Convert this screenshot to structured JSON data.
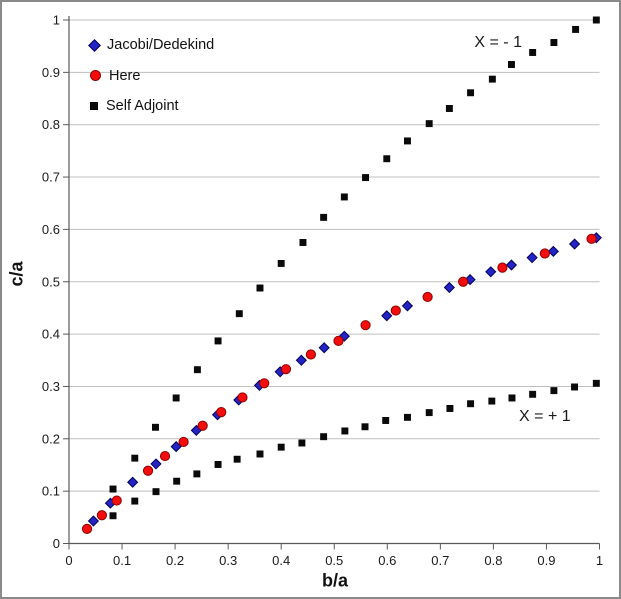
{
  "chart_data": {
    "type": "scatter",
    "title": "",
    "xlabel": "b/a",
    "ylabel": "c/a",
    "xlim": [
      0,
      1
    ],
    "ylim": [
      0,
      1
    ],
    "x_ticks": [
      "0",
      "0.1",
      "0.2",
      "0.3",
      "0.4",
      "0.5",
      "0.6",
      "0.7",
      "0.8",
      "0.9",
      "1"
    ],
    "y_ticks": [
      "0",
      "0.1",
      "0.2",
      "0.3",
      "0.4",
      "0.5",
      "0.6",
      "0.7",
      "0.8",
      "0.9",
      "1"
    ],
    "grid": "horizontal-only",
    "legend_position": "top-left-inside",
    "colors": {
      "grid": "#bfbfbf",
      "axis": "#595959",
      "tick_text": "#1a1a1a"
    },
    "series": [
      {
        "name": "Jacobi/Dedekind",
        "marker": "diamond",
        "color": "#2424c4",
        "edge": "#00005a",
        "points": [
          [
            0.046,
            0.043
          ],
          [
            0.078,
            0.077
          ],
          [
            0.12,
            0.117
          ],
          [
            0.164,
            0.152
          ],
          [
            0.202,
            0.185
          ],
          [
            0.24,
            0.216
          ],
          [
            0.28,
            0.246
          ],
          [
            0.32,
            0.274
          ],
          [
            0.359,
            0.302
          ],
          [
            0.398,
            0.328
          ],
          [
            0.438,
            0.35
          ],
          [
            0.481,
            0.374
          ],
          [
            0.519,
            0.396
          ],
          [
            0.599,
            0.435
          ],
          [
            0.638,
            0.454
          ],
          [
            0.717,
            0.489
          ],
          [
            0.756,
            0.504
          ],
          [
            0.795,
            0.519
          ],
          [
            0.834,
            0.532
          ],
          [
            0.873,
            0.546
          ],
          [
            0.913,
            0.558
          ],
          [
            0.953,
            0.572
          ],
          [
            0.994,
            0.584
          ]
        ]
      },
      {
        "name": "Here",
        "marker": "circle",
        "color": "#f40d0d",
        "edge": "#8e0000",
        "points": [
          [
            0.034,
            0.028
          ],
          [
            0.062,
            0.054
          ],
          [
            0.09,
            0.082
          ],
          [
            0.149,
            0.139
          ],
          [
            0.181,
            0.167
          ],
          [
            0.216,
            0.194
          ],
          [
            0.252,
            0.225
          ],
          [
            0.287,
            0.251
          ],
          [
            0.327,
            0.279
          ],
          [
            0.368,
            0.306
          ],
          [
            0.409,
            0.333
          ],
          [
            0.456,
            0.361
          ],
          [
            0.508,
            0.387
          ],
          [
            0.559,
            0.417
          ],
          [
            0.616,
            0.445
          ],
          [
            0.676,
            0.471
          ],
          [
            0.743,
            0.5
          ],
          [
            0.817,
            0.527
          ],
          [
            0.897,
            0.554
          ],
          [
            0.985,
            0.582
          ]
        ]
      },
      {
        "name": "Self Adjoint",
        "marker": "square",
        "color": "#0a0a0a",
        "edge": "#000000",
        "branches": [
          {
            "annotation": "X = - 1",
            "points": [
              [
                0.083,
                0.104
              ],
              [
                0.124,
                0.163
              ],
              [
                0.163,
                0.222
              ],
              [
                0.202,
                0.278
              ],
              [
                0.242,
                0.332
              ],
              [
                0.281,
                0.387
              ],
              [
                0.321,
                0.439
              ],
              [
                0.36,
                0.488
              ],
              [
                0.4,
                0.535
              ],
              [
                0.441,
                0.575
              ],
              [
                0.48,
                0.623
              ],
              [
                0.519,
                0.662
              ],
              [
                0.559,
                0.699
              ],
              [
                0.599,
                0.735
              ],
              [
                0.638,
                0.769
              ],
              [
                0.679,
                0.802
              ],
              [
                0.717,
                0.831
              ],
              [
                0.757,
                0.861
              ],
              [
                0.798,
                0.887
              ],
              [
                0.834,
                0.915
              ],
              [
                0.874,
                0.938
              ],
              [
                0.914,
                0.957
              ],
              [
                0.955,
                0.982
              ],
              [
                0.994,
                1.0
              ]
            ]
          },
          {
            "annotation": "X = + 1",
            "points": [
              [
                0.083,
                0.053
              ],
              [
                0.124,
                0.081
              ],
              [
                0.164,
                0.099
              ],
              [
                0.203,
                0.119
              ],
              [
                0.241,
                0.133
              ],
              [
                0.281,
                0.151
              ],
              [
                0.317,
                0.161
              ],
              [
                0.36,
                0.171
              ],
              [
                0.4,
                0.184
              ],
              [
                0.439,
                0.192
              ],
              [
                0.48,
                0.204
              ],
              [
                0.52,
                0.215
              ],
              [
                0.558,
                0.223
              ],
              [
                0.597,
                0.235
              ],
              [
                0.638,
                0.241
              ],
              [
                0.679,
                0.25
              ],
              [
                0.718,
                0.258
              ],
              [
                0.757,
                0.267
              ],
              [
                0.797,
                0.272
              ],
              [
                0.835,
                0.278
              ],
              [
                0.874,
                0.285
              ],
              [
                0.914,
                0.292
              ],
              [
                0.953,
                0.299
              ],
              [
                0.994,
                0.306
              ]
            ]
          }
        ]
      }
    ],
    "annotations": [
      {
        "text": "X = - 1",
        "x": 0.809,
        "y": 0.956
      },
      {
        "text": "X = + 1",
        "x": 0.897,
        "y": 0.242
      }
    ]
  }
}
